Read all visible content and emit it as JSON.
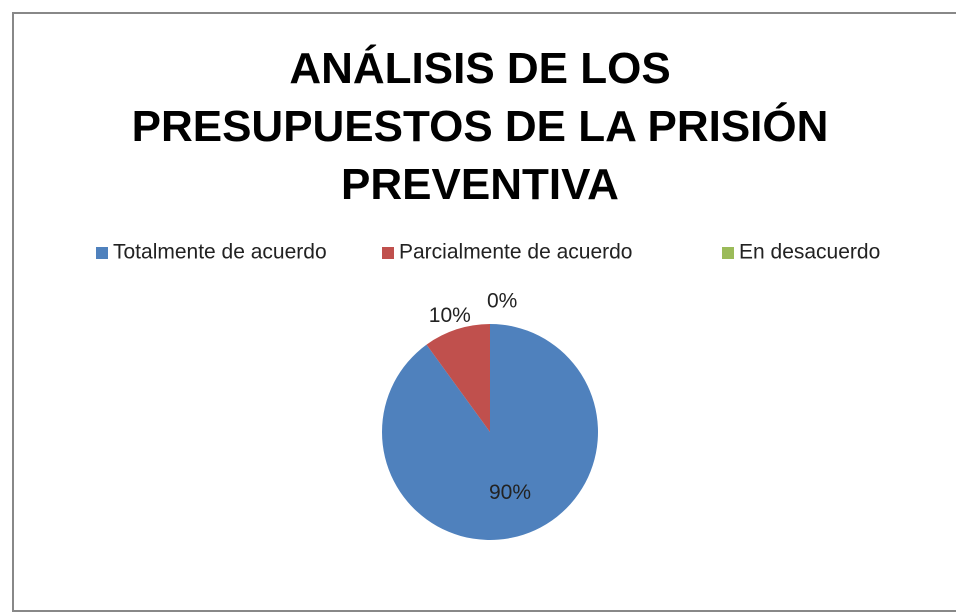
{
  "chart_data": {
    "type": "pie",
    "title": "ANÁLISIS DE LOS PRESUPUESTOS DE LA PRISIÓN PREVENTIVA",
    "categories": [
      "Totalmente de acuerdo",
      "Parcialmente de acuerdo",
      "En desacuerdo"
    ],
    "values": [
      90,
      10,
      0
    ],
    "value_labels": [
      "90%",
      "10%",
      "0%"
    ],
    "colors": [
      "#4f81bd",
      "#c0504d",
      "#9bbb59"
    ],
    "legend": "top"
  }
}
